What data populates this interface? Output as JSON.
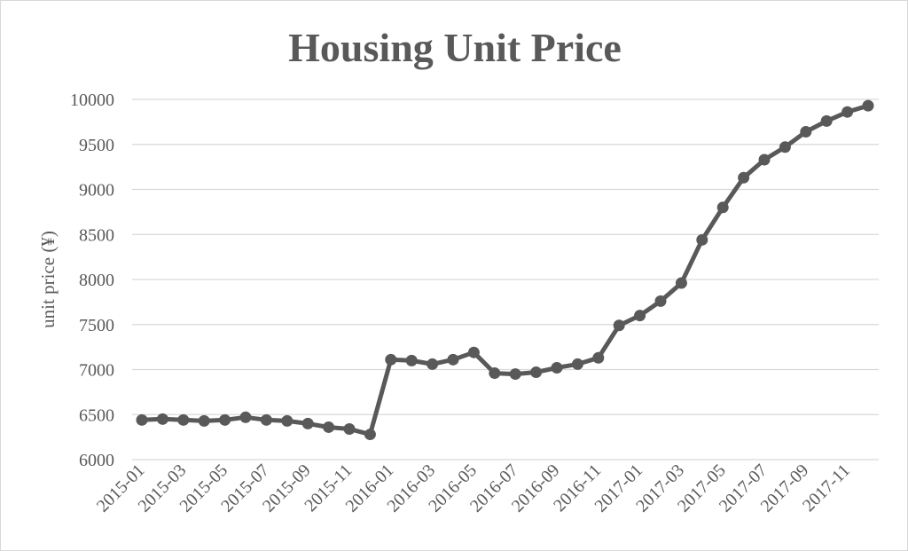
{
  "chart_data": {
    "type": "line",
    "title": "Housing Unit Price",
    "xlabel": "",
    "ylabel": "unit price (¥)",
    "ylim": [
      6000,
      10000
    ],
    "yticks": [
      6000,
      6500,
      7000,
      7500,
      8000,
      8500,
      9000,
      9500,
      10000
    ],
    "x_tick_labels": [
      "2015-01",
      "2015-03",
      "2015-05",
      "2015-07",
      "2015-09",
      "2015-11",
      "2016-01",
      "2016-03",
      "2016-05",
      "2016-07",
      "2016-09",
      "2016-11",
      "2017-01",
      "2017-03",
      "2017-05",
      "2017-07",
      "2017-09",
      "2017-11"
    ],
    "grid": true,
    "legend": "none",
    "colors": {
      "line": "#595959",
      "grid": "#d9d9d9",
      "text": "#595959"
    },
    "x": [
      "2015-01",
      "2015-02",
      "2015-03",
      "2015-04",
      "2015-05",
      "2015-06",
      "2015-07",
      "2015-08",
      "2015-09",
      "2015-10",
      "2015-11",
      "2015-12",
      "2016-01",
      "2016-02",
      "2016-03",
      "2016-04",
      "2016-05",
      "2016-06",
      "2016-07",
      "2016-08",
      "2016-09",
      "2016-10",
      "2016-11",
      "2016-12",
      "2017-01",
      "2017-02",
      "2017-03",
      "2017-04",
      "2017-05",
      "2017-06",
      "2017-07",
      "2017-08",
      "2017-09",
      "2017-10",
      "2017-11",
      "2017-12"
    ],
    "series": [
      {
        "values": [
          6440,
          6450,
          6440,
          6430,
          6440,
          6470,
          6440,
          6430,
          6400,
          6360,
          6340,
          6280,
          7110,
          7100,
          7060,
          7110,
          7190,
          6960,
          6950,
          6970,
          7020,
          7060,
          7130,
          7490,
          7600,
          7760,
          7960,
          8440,
          8800,
          9130,
          9330,
          9470,
          9640,
          9760,
          9860,
          9930
        ]
      }
    ]
  }
}
